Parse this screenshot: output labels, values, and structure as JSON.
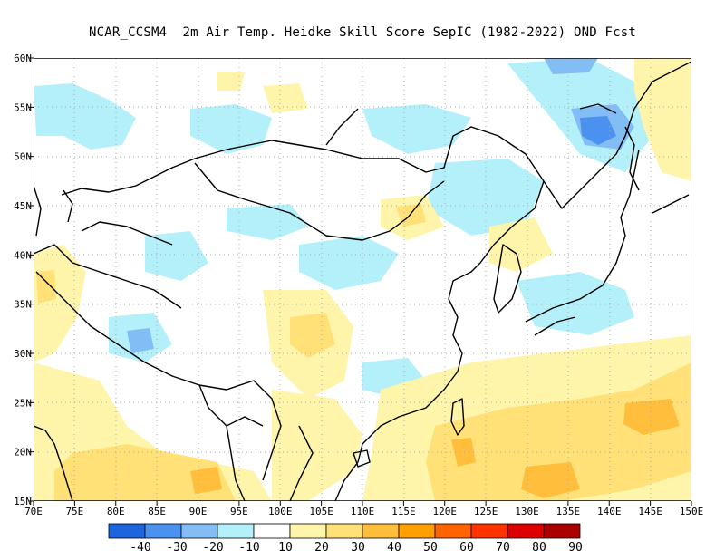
{
  "title": "NCAR_CCSM4  2m Air Temp. Heidke Skill Score SepIC (1982-2022) OND Fcst",
  "lon_ticks": [
    "70E",
    "75E",
    "80E",
    "85E",
    "90E",
    "95E",
    "100E",
    "105E",
    "110E",
    "115E",
    "120E",
    "125E",
    "130E",
    "135E",
    "140E",
    "145E",
    "150E"
  ],
  "lat_ticks": [
    "15N",
    "20N",
    "25N",
    "30N",
    "35N",
    "40N",
    "45N",
    "50N",
    "55N",
    "60N"
  ],
  "colorbar": {
    "colors": [
      "#1e64dc",
      "#4b91f0",
      "#82bef5",
      "#b4f0fa",
      "#ffffff",
      "#fff5aa",
      "#ffe178",
      "#ffbe3c",
      "#ffa000",
      "#ff6400",
      "#ff3200",
      "#dc0000",
      "#aa0000"
    ],
    "labels": [
      "-40",
      "-30",
      "-20",
      "-10",
      "10",
      "20",
      "30",
      "40",
      "50",
      "60",
      "70",
      "80",
      "90"
    ]
  },
  "extent": {
    "lon": [
      70,
      150
    ],
    "lat": [
      15,
      60
    ]
  },
  "grid": true
}
